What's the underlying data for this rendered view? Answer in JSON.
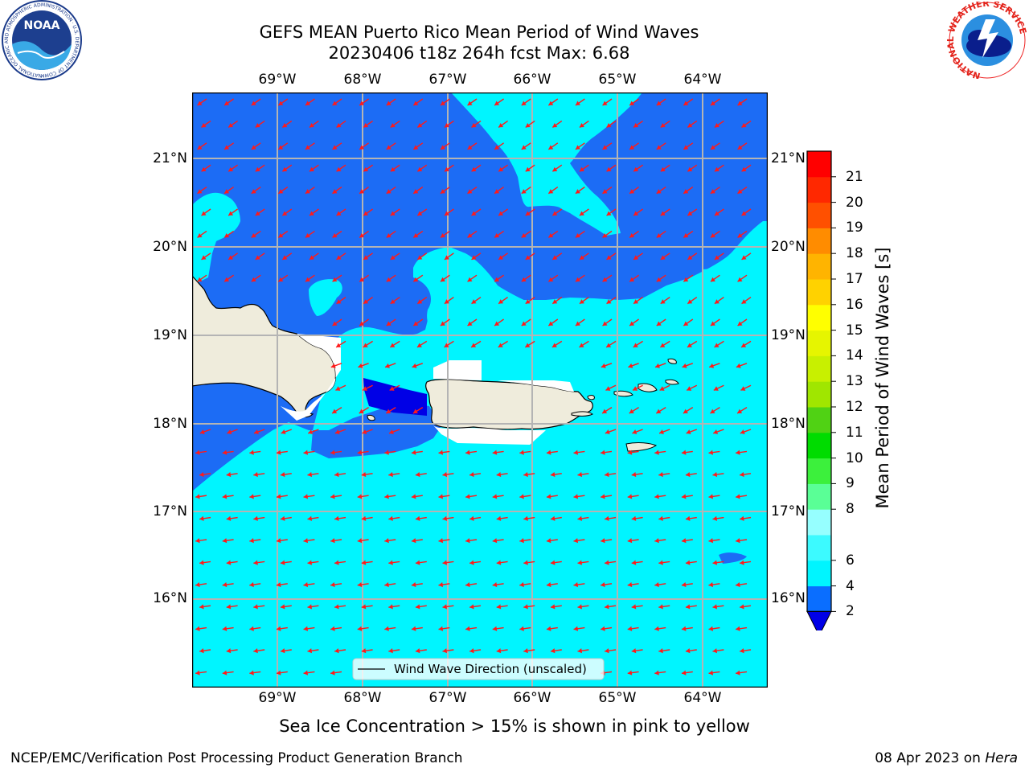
{
  "title": {
    "line1": "GEFS MEAN Puerto Rico Mean Period of Wind Waves",
    "line2": "20230406 t18z 264h fcst   Max: 6.68"
  },
  "axes": {
    "lon_ticks": [
      "69°W",
      "68°W",
      "67°W",
      "66°W",
      "65°W",
      "64°W"
    ],
    "lat_ticks": [
      "21°N",
      "20°N",
      "19°N",
      "18°N",
      "17°N",
      "16°N"
    ]
  },
  "legend": {
    "label": "Wind Wave Direction (unscaled)"
  },
  "colorbar": {
    "title": "Mean Period of Wind Waves [s]",
    "levels": [
      "2",
      "4",
      "6",
      "7",
      "8",
      "9",
      "10",
      "11",
      "12",
      "13",
      "14",
      "15",
      "16",
      "17",
      "18",
      "19",
      "20",
      "21"
    ],
    "labels": [
      "2",
      "4",
      "6",
      "8",
      "9",
      "10",
      "11",
      "12",
      "13",
      "14",
      "15",
      "16",
      "17",
      "18",
      "19",
      "20",
      "21"
    ],
    "colors": [
      "#0000e6",
      "#0a6eff",
      "#00f5ff",
      "#3cfaff",
      "#96ffff",
      "#5aff96",
      "#3cf03c",
      "#00dc00",
      "#50d214",
      "#a0e600",
      "#c8f000",
      "#e6f500",
      "#ffff00",
      "#ffd200",
      "#ffb400",
      "#ff8c00",
      "#ff5000",
      "#ff2800",
      "#ff0000"
    ]
  },
  "colors": {
    "ocean_dark": "#1c6cf5",
    "ocean_light": "#00f5ff",
    "ocean_deep": "#0000e6",
    "land": "#efecdc",
    "arrow": "#ff1a1a"
  },
  "note": "Sea Ice Concentration > 15% is shown in pink to yellow",
  "footer": {
    "left": "NCEP/EMC/Verification Post Processing Product Generation Branch",
    "right_date": "08 Apr 2023 on",
    "right_host": "Hera"
  },
  "logos": {
    "noaa_text": "NOAA",
    "noaa_ring": "NATIONAL OCEANIC AND ATMOSPHERIC ADMINISTRATION · U.S. DEPARTMENT OF COMMERCE",
    "nws_ring": "NATIONAL WEATHER SERVICE"
  }
}
